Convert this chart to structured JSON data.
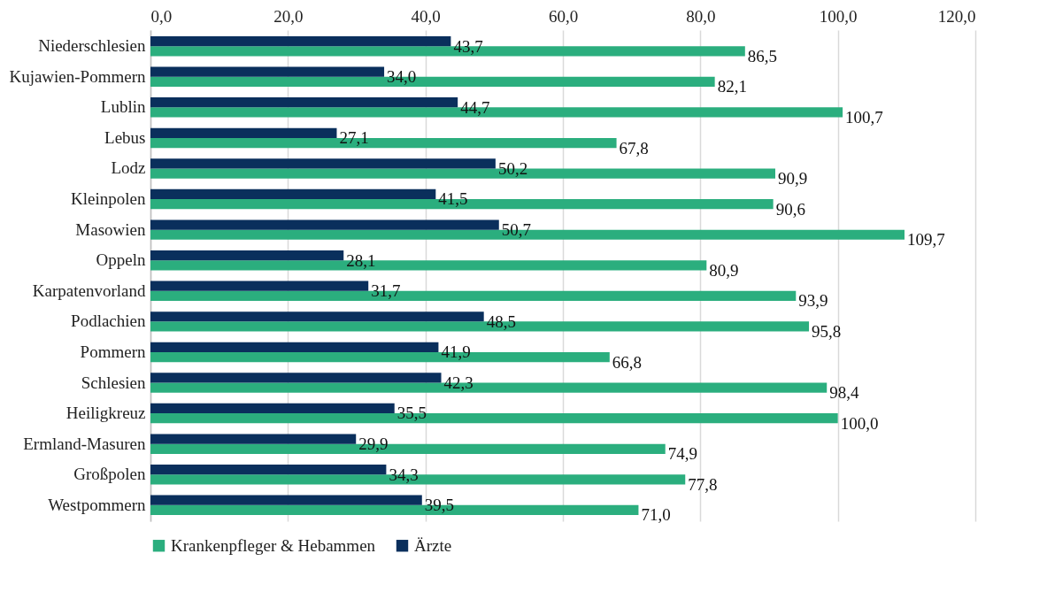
{
  "chart_data": {
    "type": "bar",
    "orientation": "horizontal",
    "categories": [
      "Niederschlesien",
      "Kujawien-Pommern",
      "Lublin",
      "Lebus",
      "Lodz",
      "Kleinpolen",
      "Masowien",
      "Oppeln",
      "Karpatenvorland",
      "Podlachien",
      "Pommern",
      "Schlesien",
      "Heiligkreuz",
      "Ermland-Masuren",
      "Großpolen",
      "Westpommern"
    ],
    "series": [
      {
        "name": "Krankenpfleger & Hebammen",
        "color": "#2bae7e",
        "values": [
          86.5,
          82.1,
          100.7,
          67.8,
          90.9,
          90.6,
          109.7,
          80.9,
          93.9,
          95.8,
          66.8,
          98.4,
          100.0,
          74.9,
          77.8,
          71.0
        ],
        "value_labels": [
          "86,5",
          "82,1",
          "100,7",
          "67,8",
          "90,9",
          "90,6",
          "109,7",
          "80,9",
          "93,9",
          "95,8",
          "66,8",
          "98,4",
          "100,0",
          "74,9",
          "77,8",
          "71,0"
        ]
      },
      {
        "name": "Ärzte",
        "color": "#0a2f5c",
        "values": [
          43.7,
          34.0,
          44.7,
          27.1,
          50.2,
          41.5,
          50.7,
          28.1,
          31.7,
          48.5,
          41.9,
          42.3,
          35.5,
          29.9,
          34.3,
          39.5
        ],
        "value_labels": [
          "43,7",
          "34,0",
          "44,7",
          "27,1",
          "50,2",
          "41,5",
          "50,7",
          "28,1",
          "31,7",
          "48,5",
          "41,9",
          "42,3",
          "35,5",
          "29,9",
          "34,3",
          "39,5"
        ]
      }
    ],
    "xlim": [
      0,
      120
    ],
    "xticks": [
      {
        "value": 0,
        "label": "0,0"
      },
      {
        "value": 20,
        "label": "20,0"
      },
      {
        "value": 40,
        "label": "40,0"
      },
      {
        "value": 60,
        "label": "60,0"
      },
      {
        "value": 80,
        "label": "80,0"
      },
      {
        "value": 100,
        "label": "100,0"
      },
      {
        "value": 120,
        "label": "120,0"
      }
    ],
    "grid": "x",
    "legend": "bottom"
  }
}
